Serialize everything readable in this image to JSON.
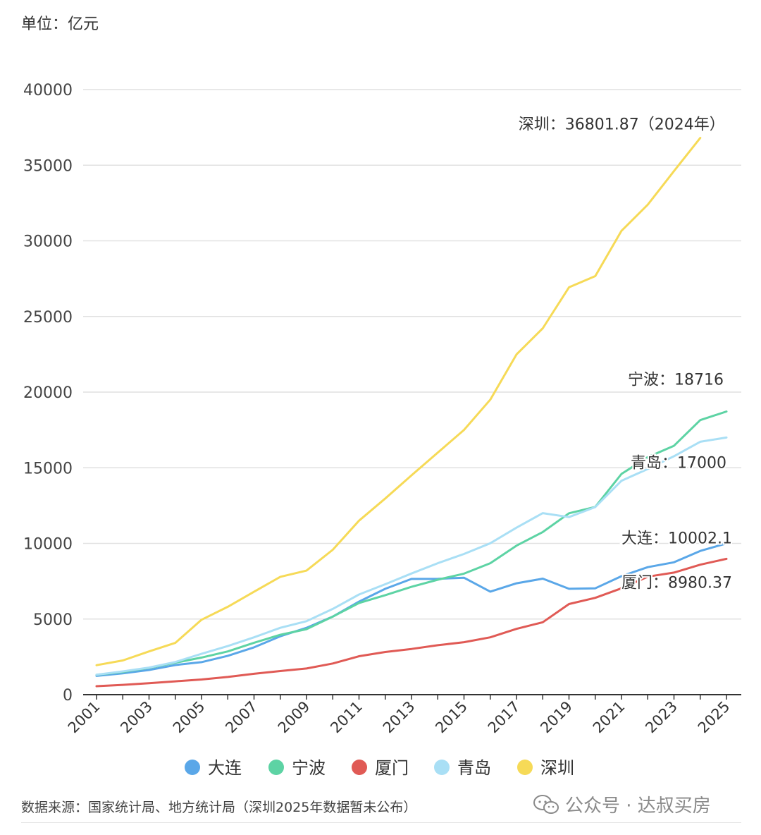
{
  "unit_label": "单位：亿元",
  "source_note": "数据来源：国家统计局、地方统计局（深圳2025年数据暂未公布）",
  "watermark": "公众号 · 达叔买房",
  "chart_data": {
    "type": "line",
    "title": "",
    "xlabel": "",
    "ylabel": "单位：亿元",
    "ylim": [
      0,
      40000
    ],
    "yticks": [
      0,
      5000,
      10000,
      15000,
      20000,
      25000,
      30000,
      35000,
      40000
    ],
    "xticks": [
      "2001",
      "2003",
      "2005",
      "2007",
      "2009",
      "2011",
      "2013",
      "2015",
      "2017",
      "2019",
      "2021",
      "2023",
      "2025"
    ],
    "x": [
      2001,
      2002,
      2003,
      2004,
      2005,
      2006,
      2007,
      2008,
      2009,
      2010,
      2011,
      2012,
      2013,
      2014,
      2015,
      2016,
      2017,
      2018,
      2019,
      2020,
      2021,
      2022,
      2023,
      2024,
      2025
    ],
    "grid": true,
    "legend_position": "bottom",
    "series": [
      {
        "name": "大连",
        "color": "#5aa7e8",
        "values": [
          1240,
          1410,
          1630,
          1960,
          2150,
          2570,
          3130,
          3860,
          4420,
          5160,
          6150,
          7000,
          7650,
          7660,
          7730,
          6810,
          7360,
          7670,
          7000,
          7030,
          7830,
          8430,
          8750,
          9500,
          10002.1
        ]
      },
      {
        "name": "宁波",
        "color": "#5dd3a4",
        "values": [
          1310,
          1500,
          1770,
          2110,
          2450,
          2860,
          3430,
          3960,
          4330,
          5160,
          6060,
          6580,
          7130,
          7600,
          8000,
          8690,
          9850,
          10750,
          11990,
          12410,
          14590,
          15700,
          16450,
          18150,
          18716
        ]
      },
      {
        "name": "厦门",
        "color": "#e05a55",
        "values": [
          560,
          650,
          760,
          880,
          1000,
          1170,
          1380,
          1560,
          1730,
          2060,
          2540,
          2820,
          3020,
          3270,
          3470,
          3790,
          4350,
          4790,
          5990,
          6400,
          7030,
          7800,
          8070,
          8590,
          8980.37
        ]
      },
      {
        "name": "青岛",
        "color": "#a9dff5",
        "values": [
          1320,
          1540,
          1790,
          2160,
          2700,
          3210,
          3790,
          4420,
          4860,
          5670,
          6620,
          7300,
          8010,
          8690,
          9300,
          10010,
          11040,
          12000,
          11740,
          12400,
          14140,
          14920,
          15760,
          16720,
          17000
        ]
      },
      {
        "name": "深圳",
        "color": "#f6da57",
        "values": [
          1950,
          2260,
          2860,
          3420,
          4950,
          5810,
          6800,
          7790,
          8200,
          9580,
          11500,
          12970,
          14500,
          16000,
          17500,
          19500,
          22490,
          24220,
          26930,
          27670,
          30660,
          32390,
          34610,
          36801.87,
          null
        ]
      }
    ],
    "annotations": [
      {
        "text": "深圳：36801.87（2024年）",
        "series": "深圳",
        "x": 2024,
        "y": 36801.87
      },
      {
        "text": "宁波：18716",
        "series": "宁波",
        "x": 2025,
        "y": 18716
      },
      {
        "text": "青岛：17000",
        "series": "青岛",
        "x": 2025,
        "y": 17000
      },
      {
        "text": "大连：10002.1",
        "series": "大连",
        "x": 2025,
        "y": 10002.1
      },
      {
        "text": "厦门：8980.37",
        "series": "厦门",
        "x": 2025,
        "y": 8980.37
      }
    ]
  }
}
